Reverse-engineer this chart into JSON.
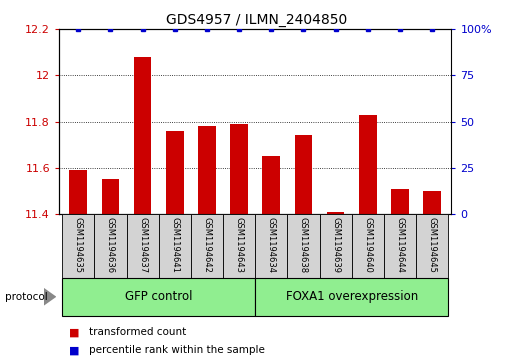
{
  "title": "GDS4957 / ILMN_2404850",
  "samples": [
    "GSM1194635",
    "GSM1194636",
    "GSM1194637",
    "GSM1194641",
    "GSM1194642",
    "GSM1194643",
    "GSM1194634",
    "GSM1194638",
    "GSM1194639",
    "GSM1194640",
    "GSM1194644",
    "GSM1194645"
  ],
  "transformed_counts": [
    11.59,
    11.55,
    12.08,
    11.76,
    11.78,
    11.79,
    11.65,
    11.74,
    11.41,
    11.83,
    11.51,
    11.5
  ],
  "percentile_ranks": [
    100,
    100,
    100,
    100,
    100,
    100,
    100,
    100,
    100,
    100,
    100,
    100
  ],
  "bar_color": "#cc0000",
  "dot_color": "#0000cc",
  "ylim_left": [
    11.4,
    12.2
  ],
  "ylim_right": [
    0,
    100
  ],
  "yticks_left": [
    11.4,
    11.6,
    11.8,
    12.0,
    12.2
  ],
  "ytick_labels_left": [
    "11.4",
    "11.6",
    "11.8",
    "12",
    "12.2"
  ],
  "yticks_right": [
    0,
    25,
    50,
    75,
    100
  ],
  "ytick_labels_right": [
    "0",
    "25",
    "50",
    "75",
    "100%"
  ],
  "group1_label": "GFP control",
  "group2_label": "FOXA1 overexpression",
  "group1_count": 6,
  "group2_count": 6,
  "protocol_label": "protocol",
  "group_box_color": "#90ee90",
  "sample_box_color": "#d3d3d3",
  "legend_bar_label": "transformed count",
  "legend_dot_label": "percentile rank within the sample",
  "title_fontsize": 10,
  "tick_fontsize": 8,
  "sample_fontsize": 6,
  "group_fontsize": 8.5,
  "legend_fontsize": 7.5,
  "protocol_fontsize": 7.5
}
